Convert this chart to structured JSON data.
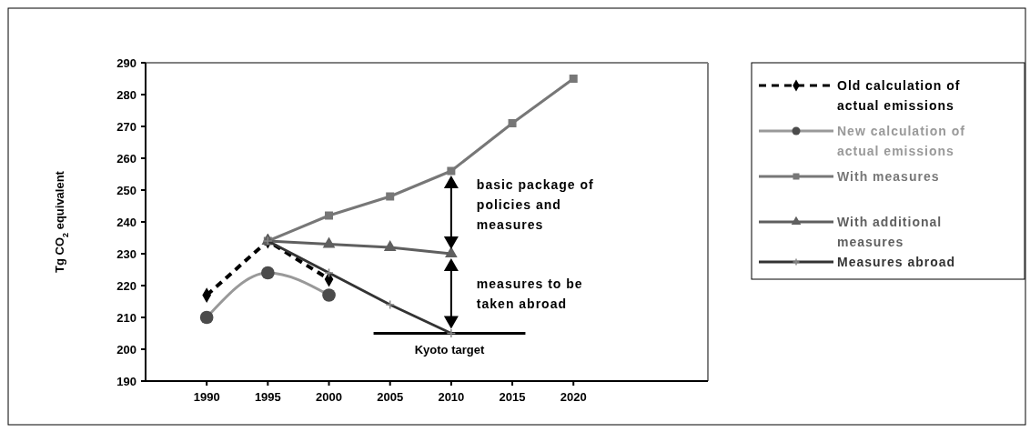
{
  "chart_data": {
    "type": "line",
    "ylabel": "Tg CO$_{2}$ equivalent",
    "x": [
      1990,
      1995,
      2000,
      2005,
      2010,
      2015,
      2020
    ],
    "xlim": [
      1985,
      2031
    ],
    "xticks": [
      1990,
      1995,
      2000,
      2005,
      2010,
      2015,
      2020
    ],
    "ylim": [
      190,
      290
    ],
    "yticks": [
      190,
      200,
      210,
      220,
      230,
      240,
      250,
      260,
      270,
      280,
      290
    ],
    "legend": "right",
    "grid": false,
    "series": [
      {
        "name": "Old calculation of actual emissions",
        "color": "#000000",
        "marker": "diamond",
        "line_style": "dashed",
        "values": [
          217,
          234,
          222,
          null,
          null,
          null,
          null
        ]
      },
      {
        "name": "New calculation of actual emissions",
        "color": "#999999",
        "marker": "circle",
        "line_style": "solid",
        "values": [
          210,
          224,
          217,
          null,
          null,
          null,
          null
        ]
      },
      {
        "name": "With measures",
        "color": "#777777",
        "marker": "square",
        "line_style": "solid",
        "values": [
          null,
          234,
          242,
          248,
          256,
          271,
          285
        ]
      },
      {
        "name": "With additional measures",
        "color": "#5f5f5f",
        "marker": "triangle",
        "line_style": "solid",
        "values": [
          null,
          234,
          233,
          232,
          230,
          null,
          null
        ]
      },
      {
        "name": "Measures abroad",
        "color": "#333333",
        "marker": "cross",
        "line_style": "solid",
        "values": [
          null,
          234,
          224,
          214,
          205,
          null,
          null
        ]
      }
    ],
    "ref_lines": [
      {
        "axis": "y",
        "value": 205,
        "label": "Kyoto target"
      }
    ],
    "annotations": [
      "basic package of policies and measures",
      "measures to be taken abroad"
    ]
  }
}
